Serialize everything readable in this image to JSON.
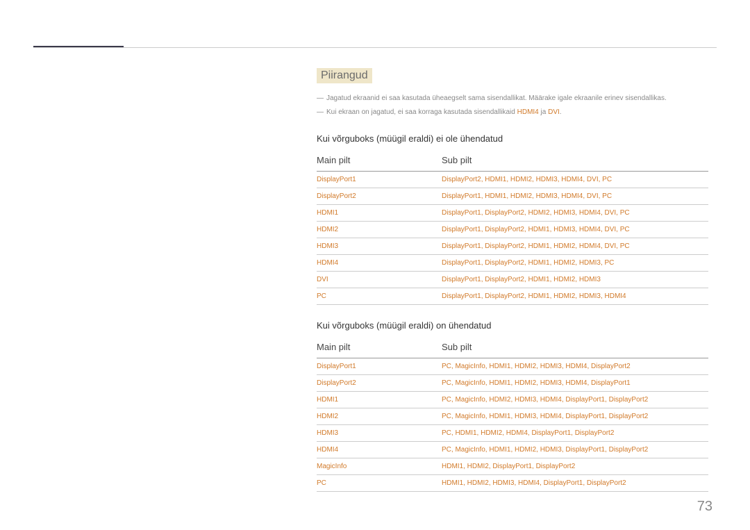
{
  "page_number": "73",
  "section_title": "Piirangud",
  "notes": [
    {
      "prefix": "―",
      "text": "Jagatud ekraanid ei saa kasutada üheaegselt sama sisendallikat. Määrake igale ekraanile erinev sisendallikas.",
      "highlights": []
    },
    {
      "prefix": "―",
      "text_parts": [
        "Kui ekraan on jagatud, ei saa korraga kasutada sisendallikaid ",
        "HDMI4",
        " ja ",
        "DVI",
        "."
      ],
      "highlight_idx": [
        1,
        3
      ]
    }
  ],
  "tables": [
    {
      "heading": "Kui võrguboks (müügil eraldi) ei ole ühendatud",
      "col1": "Main pilt",
      "col2": "Sub pilt",
      "rows": [
        {
          "main": "DisplayPort1",
          "sub": "DisplayPort2, HDMI1, HDMI2, HDMI3, HDMI4, DVI, PC"
        },
        {
          "main": "DisplayPort2",
          "sub": "DisplayPort1, HDMI1, HDMI2, HDMI3, HDMI4, DVI, PC"
        },
        {
          "main": "HDMI1",
          "sub": "DisplayPort1, DisplayPort2, HDMI2, HDMI3, HDMI4, DVI, PC"
        },
        {
          "main": "HDMI2",
          "sub": "DisplayPort1, DisplayPort2, HDMI1, HDMI3, HDMI4, DVI, PC"
        },
        {
          "main": "HDMI3",
          "sub": "DisplayPort1, DisplayPort2, HDMI1, HDMI2, HDMI4, DVI, PC"
        },
        {
          "main": "HDMI4",
          "sub": "DisplayPort1, DisplayPort2, HDMI1, HDMI2, HDMI3, PC"
        },
        {
          "main": "DVI",
          "sub": "DisplayPort1, DisplayPort2, HDMI1, HDMI2, HDMI3"
        },
        {
          "main": "PC",
          "sub": "DisplayPort1, DisplayPort2, HDMI1, HDMI2, HDMI3, HDMI4"
        }
      ]
    },
    {
      "heading": "Kui võrguboks (müügil eraldi) on ühendatud",
      "col1": "Main pilt",
      "col2": "Sub pilt",
      "rows": [
        {
          "main": "DisplayPort1",
          "sub": "PC, MagicInfo, HDMI1, HDMI2, HDMI3, HDMI4, DisplayPort2"
        },
        {
          "main": "DisplayPort2",
          "sub": "PC, MagicInfo, HDMI1, HDMI2, HDMI3, HDMI4, DisplayPort1"
        },
        {
          "main": "HDMI1",
          "sub": "PC, MagicInfo, HDMI2, HDMI3, HDMI4, DisplayPort1, DisplayPort2"
        },
        {
          "main": "HDMI2",
          "sub": "PC, MagicInfo, HDMI1, HDMI3, HDMI4, DisplayPort1, DisplayPort2"
        },
        {
          "main": "HDMI3",
          "sub": "PC, HDMI1, HDMI2, HDMI4, DisplayPort1, DisplayPort2"
        },
        {
          "main": "HDMI4",
          "sub": "PC, MagicInfo, HDMI1, HDMI2, HDMI3, DisplayPort1, DisplayPort2"
        },
        {
          "main": "MagicInfo",
          "sub": "HDMI1, HDMI2, DisplayPort1, DisplayPort2"
        },
        {
          "main": "PC",
          "sub": "HDMI1, HDMI2, HDMI3, HDMI4, DisplayPort1, DisplayPort2"
        }
      ]
    }
  ]
}
